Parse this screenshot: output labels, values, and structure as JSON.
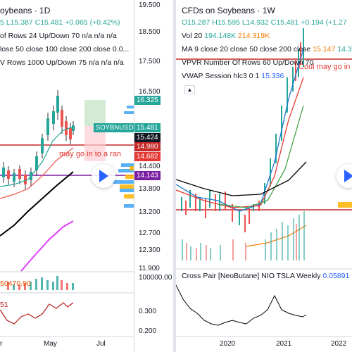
{
  "left": {
    "title": "oybeans · 1D",
    "ohlc_line": "5 L15.387 C15.481 +0.065 (+0.42%)",
    "vpvr": "of Rows 24 Up/Down 70  n/a n/a n/a",
    "ma": "lose 50 close 100 close 200 close 0.0...",
    "vpvr2": "V Rows 1000 Up/Down 75  n/a n/a n/a",
    "symbol_tag": "SOYBNUSD",
    "annotation": "may go in to a ran",
    "volume_value": "50470.90",
    "osc_value": "51",
    "prices": [
      "19.500",
      "18.500",
      "17.500",
      "16.500",
      "15.481",
      "15.424",
      "14.980",
      "14.682",
      "14.400",
      "14.143",
      "13.800",
      "13.200",
      "12.700",
      "12.300",
      "11.900",
      "100000.00",
      "0.300",
      "0.200"
    ],
    "price_labels": {
      "p16325": "16.325",
      "p15481": "15.481",
      "p15424": "15.424",
      "p14980": "14.980",
      "p14682": "14.682",
      "p14143": "14.143"
    },
    "x_labels": [
      "r",
      "May",
      "Jul"
    ]
  },
  "right": {
    "title": "CFDs on Soybeans · 1W",
    "ohlc_line": "O15.287 H15.595 L14.932 C15.481 +0.194 (+1.27",
    "vol_label": "Vol 20",
    "vol_v1": "194.148K",
    "vol_v2": "214.319K",
    "ma": "MA 9 close 20 close 50 close 200 close",
    "ma_v1": "15.147",
    "ma_v2": "14.3",
    "vpvr": "VPVR Number Of Rows 60 Up/Down 70",
    "annotation": "Coul may go in to",
    "vwap": "VWAP Session hlc3 0 1",
    "vwap_v": "15.336",
    "cross": "Cross Pair [NeoButane] NIO TSLA Weekly",
    "cross_v": "0.05891",
    "x_labels": [
      "2020",
      "2021",
      "2022"
    ]
  },
  "colors": {
    "green": "#26a69a",
    "red": "#ef5350",
    "blue": "#2962ff",
    "orange": "#f57c00",
    "purple": "#9c27b0"
  }
}
